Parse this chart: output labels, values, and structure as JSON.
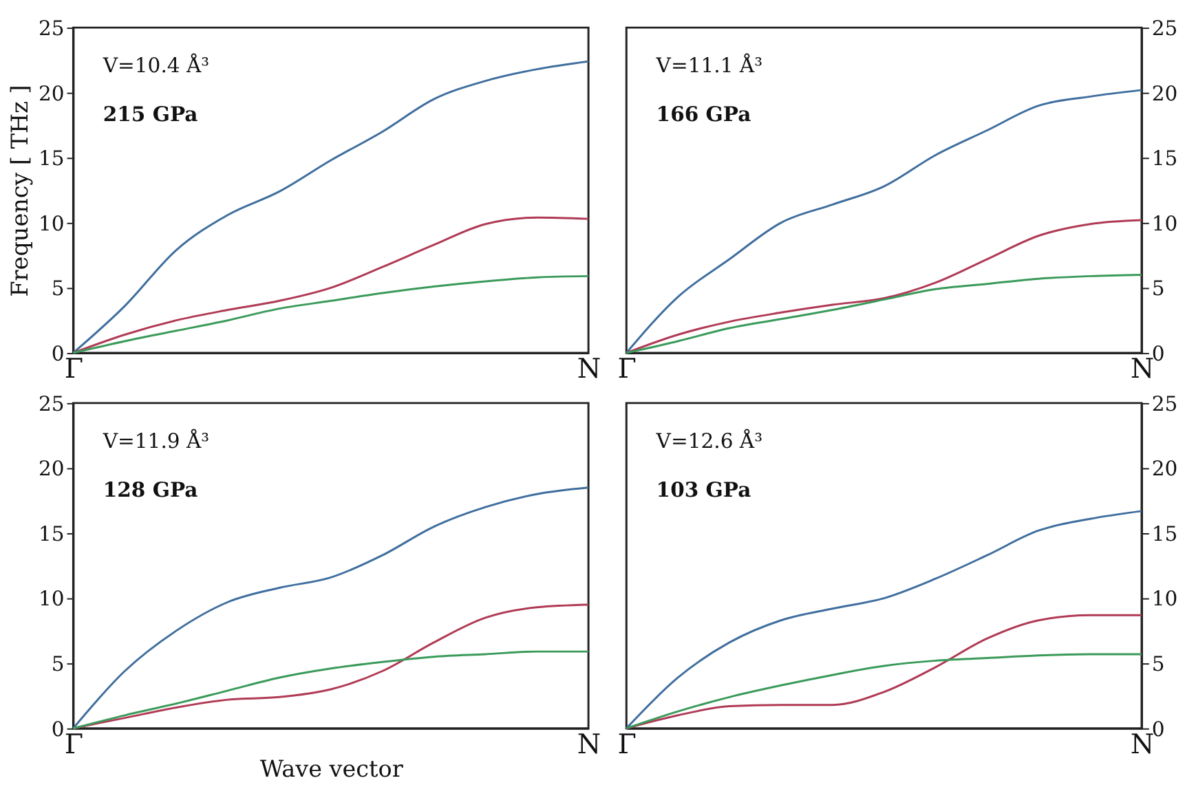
{
  "chart_data": [
    {
      "type": "line",
      "ylabel": "Frequency [ THz ]",
      "annotations": [
        "V=10.4 Å³",
        "215 GPa"
      ],
      "categories": [
        "Γ",
        null,
        null,
        null,
        null,
        null,
        null,
        null,
        null,
        null,
        "N"
      ],
      "ylim": [
        0,
        25
      ],
      "yticks": [
        0,
        5,
        10,
        15,
        20,
        25
      ],
      "grid": false,
      "line_style": "solid",
      "marker": "none",
      "series": [
        {
          "color": "#3f6e9e",
          "values": [
            0,
            3.6,
            7.9,
            10.6,
            12.4,
            14.8,
            17,
            19.5,
            20.9,
            21.8,
            22.4
          ]
        },
        {
          "color": "#b03a55",
          "values": [
            0,
            1.4,
            2.5,
            3.3,
            4,
            5,
            6.6,
            8.3,
            9.9,
            10.4,
            10.3
          ]
        },
        {
          "color": "#3a9a5a",
          "values": [
            0,
            0.9,
            1.7,
            2.5,
            3.4,
            4,
            4.6,
            5.1,
            5.5,
            5.8,
            5.9
          ]
        }
      ]
    },
    {
      "type": "line",
      "annotations": [
        "V=11.1 Å³",
        "166 GPa"
      ],
      "categories": [
        "Γ",
        null,
        null,
        null,
        null,
        null,
        null,
        null,
        null,
        null,
        "N"
      ],
      "ylim": [
        0,
        25
      ],
      "yticks": [
        0,
        5,
        10,
        15,
        20,
        25
      ],
      "grid": false,
      "line_style": "solid",
      "marker": "none",
      "series": [
        {
          "color": "#3f6e9e",
          "values": [
            0,
            4.3,
            7.2,
            10,
            11.4,
            12.8,
            15.2,
            17.1,
            19,
            19.7,
            20.2
          ]
        },
        {
          "color": "#b03a55",
          "values": [
            0,
            1.4,
            2.4,
            3.1,
            3.7,
            4.2,
            5.4,
            7.2,
            9,
            9.9,
            10.2
          ]
        },
        {
          "color": "#3a9a5a",
          "values": [
            0,
            0.9,
            1.9,
            2.6,
            3.3,
            4.1,
            4.9,
            5.3,
            5.7,
            5.9,
            6
          ]
        }
      ]
    },
    {
      "type": "line",
      "xlabel": "Wave vector",
      "annotations": [
        "V=11.9 Å³",
        "128 GPa"
      ],
      "categories": [
        "Γ",
        null,
        null,
        null,
        null,
        null,
        null,
        null,
        null,
        null,
        "N"
      ],
      "ylim": [
        0,
        25
      ],
      "yticks": [
        0,
        5,
        10,
        15,
        20,
        25
      ],
      "grid": false,
      "line_style": "solid",
      "marker": "none",
      "series": [
        {
          "color": "#3f6e9e",
          "values": [
            0,
            4.4,
            7.5,
            9.7,
            10.8,
            11.6,
            13.3,
            15.5,
            17,
            18,
            18.5
          ]
        },
        {
          "color": "#b03a55",
          "values": [
            0,
            0.8,
            1.6,
            2.2,
            2.4,
            3,
            4.4,
            6.6,
            8.5,
            9.3,
            9.5
          ]
        },
        {
          "color": "#3a9a5a",
          "values": [
            0,
            1,
            1.9,
            2.9,
            3.9,
            4.6,
            5.1,
            5.5,
            5.7,
            5.9,
            5.9
          ]
        }
      ]
    },
    {
      "type": "line",
      "annotations": [
        "V=12.6 Å³",
        "103 GPa"
      ],
      "categories": [
        "Γ",
        null,
        null,
        null,
        null,
        null,
        null,
        null,
        null,
        null,
        "N"
      ],
      "ylim": [
        0,
        25
      ],
      "yticks": [
        0,
        5,
        10,
        15,
        20,
        25
      ],
      "grid": false,
      "line_style": "solid",
      "marker": "none",
      "series": [
        {
          "color": "#3f6e9e",
          "values": [
            0,
            3.9,
            6.6,
            8.3,
            9.2,
            10,
            11.5,
            13.3,
            15.2,
            16.1,
            16.7
          ]
        },
        {
          "color": "#b03a55",
          "values": [
            0,
            1,
            1.7,
            1.8,
            1.8,
            2.8,
            4.7,
            6.9,
            8.3,
            8.7,
            8.7
          ]
        },
        {
          "color": "#3a9a5a",
          "values": [
            0,
            1.3,
            2.4,
            3.3,
            4.1,
            4.8,
            5.2,
            5.4,
            5.6,
            5.7,
            5.7
          ]
        }
      ]
    }
  ]
}
